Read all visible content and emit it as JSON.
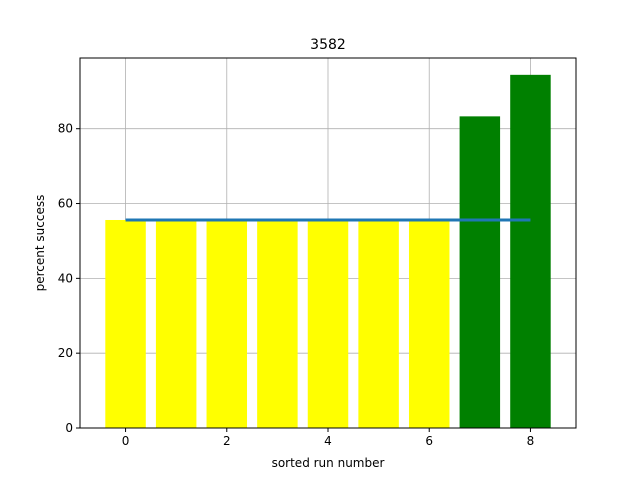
{
  "chart_data": {
    "type": "bar",
    "title": "3582",
    "xlabel": "sorted run number",
    "ylabel": "percent success",
    "x": [
      0,
      1,
      2,
      3,
      4,
      5,
      6,
      7,
      8
    ],
    "values": [
      55.6,
      55.6,
      55.6,
      55.6,
      55.6,
      55.6,
      55.6,
      83.3,
      94.4
    ],
    "bar_colors": [
      "#ffff00",
      "#ffff00",
      "#ffff00",
      "#ffff00",
      "#ffff00",
      "#ffff00",
      "#ffff00",
      "#008000",
      "#008000"
    ],
    "reference_line": {
      "x": [
        0,
        8
      ],
      "y": 55.6,
      "color": "#1f77b4"
    },
    "xlim": [
      -0.9,
      8.9
    ],
    "ylim": [
      0,
      98.9
    ],
    "xticks": [
      0,
      2,
      4,
      6,
      8
    ],
    "yticks": [
      0,
      20,
      40,
      60,
      80
    ],
    "grid": true,
    "legend": "none"
  }
}
